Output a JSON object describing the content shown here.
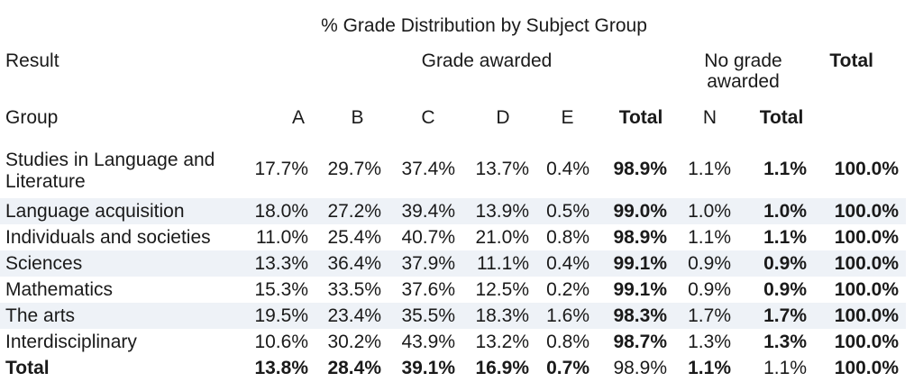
{
  "title": "% Grade Distribution by Subject Group",
  "header": {
    "result": "Result",
    "grade_awarded": "Grade awarded",
    "no_grade_awarded": "No grade awarded",
    "total": "Total",
    "group": "Group",
    "columns": [
      "A",
      "B",
      "C",
      "D",
      "E",
      "Total",
      "N",
      "Total"
    ]
  },
  "rows": [
    {
      "group": "Studies in Language and Literature",
      "values": [
        "17.7%",
        "29.7%",
        "37.4%",
        "13.7%",
        "0.4%",
        "98.9%",
        "1.1%",
        "1.1%",
        "100.0%"
      ]
    },
    {
      "group": "Language acquisition",
      "values": [
        "18.0%",
        "27.2%",
        "39.4%",
        "13.9%",
        "0.5%",
        "99.0%",
        "1.0%",
        "1.0%",
        "100.0%"
      ]
    },
    {
      "group": "Individuals and societies",
      "values": [
        "11.0%",
        "25.4%",
        "40.7%",
        "21.0%",
        "0.8%",
        "98.9%",
        "1.1%",
        "1.1%",
        "100.0%"
      ]
    },
    {
      "group": "Sciences",
      "values": [
        "13.3%",
        "36.4%",
        "37.9%",
        "11.1%",
        "0.4%",
        "99.1%",
        "0.9%",
        "0.9%",
        "100.0%"
      ]
    },
    {
      "group": "Mathematics",
      "values": [
        "15.3%",
        "33.5%",
        "37.6%",
        "12.5%",
        "0.2%",
        "99.1%",
        "0.9%",
        "0.9%",
        "100.0%"
      ]
    },
    {
      "group": "The arts",
      "values": [
        "19.5%",
        "23.4%",
        "35.5%",
        "18.3%",
        "1.6%",
        "98.3%",
        "1.7%",
        "1.7%",
        "100.0%"
      ]
    },
    {
      "group": "Interdisciplinary",
      "values": [
        "10.6%",
        "30.2%",
        "43.9%",
        "13.2%",
        "0.8%",
        "98.7%",
        "1.3%",
        "1.3%",
        "100.0%"
      ]
    }
  ],
  "total_row": {
    "group": "Total",
    "values": [
      "13.8%",
      "28.4%",
      "39.1%",
      "16.9%",
      "0.7%",
      "98.9%",
      "1.1%",
      "1.1%",
      "100.0%"
    ]
  },
  "colors": {
    "row_shade": "#eef2f7",
    "text": "#1a1a1a"
  }
}
